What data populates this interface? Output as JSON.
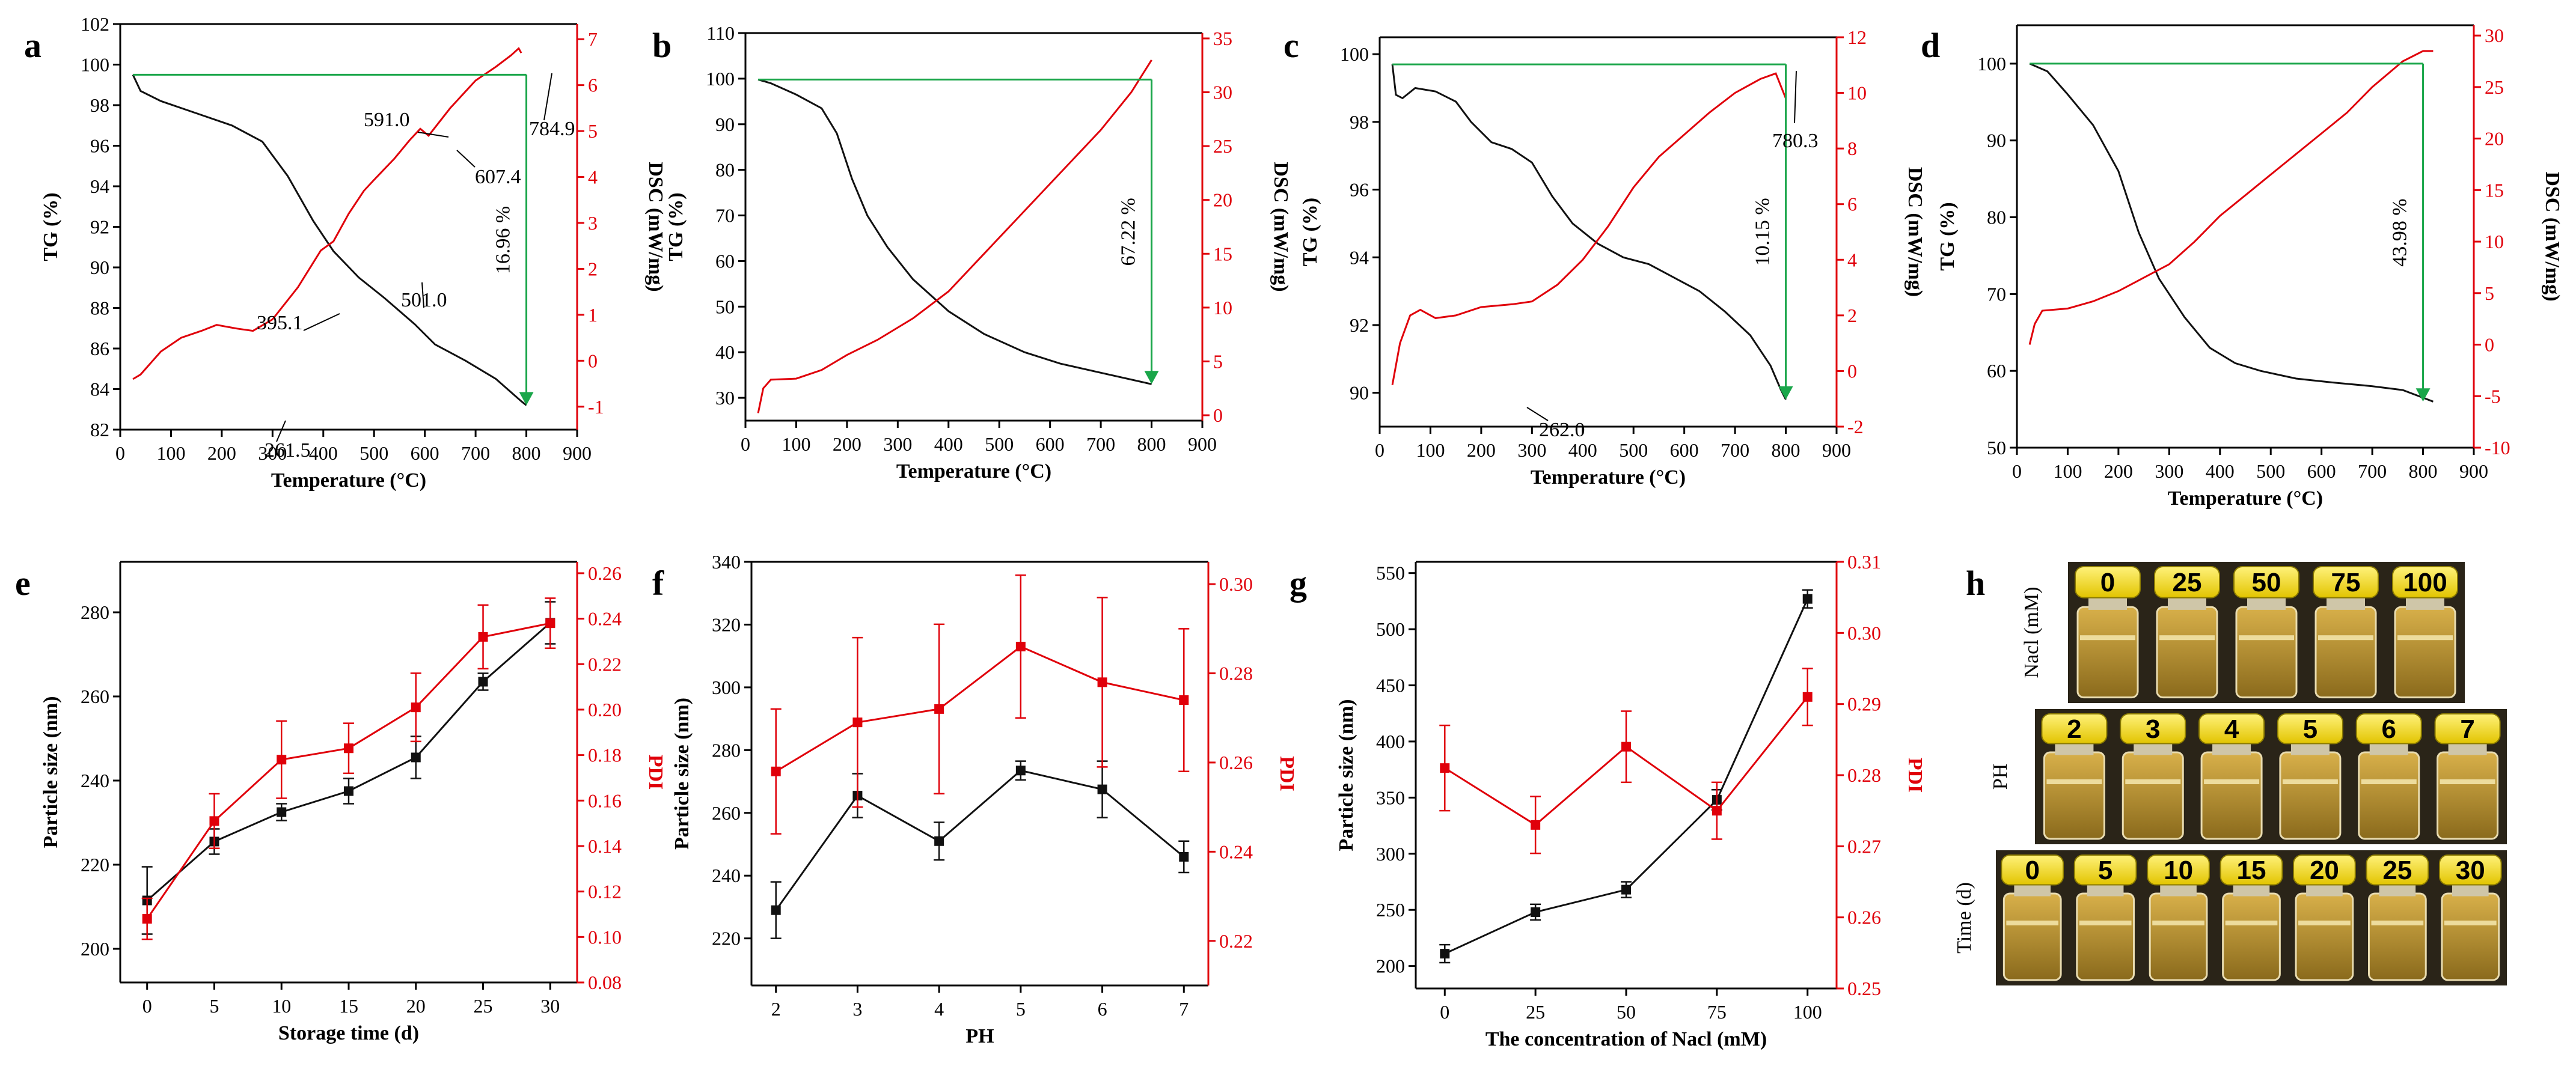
{
  "colors": {
    "black_series": "#111111",
    "red_series": "#e0000a",
    "green_arrow": "#1aa64a",
    "cap_yellow": "#f4dc00",
    "liquid": "#c9a23a"
  },
  "chart_data": [
    {
      "panel": "a",
      "type": "line",
      "xlabel": "Temperature (°C)",
      "ylabel": "TG (%)",
      "y2label": "DSC (mW/mg)",
      "xlim": [
        0,
        900
      ],
      "ylim": [
        82,
        102
      ],
      "y2lim": [
        -1.5,
        7.33
      ],
      "xticks": [
        0,
        100,
        200,
        300,
        400,
        500,
        600,
        700,
        800,
        900
      ],
      "yticks": [
        82,
        84,
        86,
        88,
        90,
        92,
        94,
        96,
        98,
        100,
        102
      ],
      "y2ticks": [
        -1,
        0,
        1,
        2,
        3,
        4,
        5,
        6,
        7
      ],
      "tg": [
        [
          25,
          99.5
        ],
        [
          40,
          98.7
        ],
        [
          80,
          98.2
        ],
        [
          150,
          97.6
        ],
        [
          220,
          97.0
        ],
        [
          280,
          96.2
        ],
        [
          330,
          94.5
        ],
        [
          380,
          92.3
        ],
        [
          420,
          90.8
        ],
        [
          470,
          89.5
        ],
        [
          520,
          88.5
        ],
        [
          580,
          87.2
        ],
        [
          620,
          86.2
        ],
        [
          680,
          85.4
        ],
        [
          740,
          84.5
        ],
        [
          790,
          83.4
        ],
        [
          800,
          83.2
        ]
      ],
      "dsc": [
        [
          25,
          -0.4
        ],
        [
          40,
          -0.3
        ],
        [
          80,
          0.2
        ],
        [
          120,
          0.5
        ],
        [
          160,
          0.65
        ],
        [
          190,
          0.78
        ],
        [
          230,
          0.7
        ],
        [
          261.5,
          0.65
        ],
        [
          300,
          0.9
        ],
        [
          350,
          1.6
        ],
        [
          395.1,
          2.4
        ],
        [
          420,
          2.6
        ],
        [
          450,
          3.2
        ],
        [
          480,
          3.7
        ],
        [
          501,
          3.95
        ],
        [
          540,
          4.4
        ],
        [
          570,
          4.8
        ],
        [
          591,
          5.05
        ],
        [
          607.4,
          4.9
        ],
        [
          650,
          5.5
        ],
        [
          700,
          6.1
        ],
        [
          740,
          6.4
        ],
        [
          770,
          6.65
        ],
        [
          784.9,
          6.8
        ],
        [
          790,
          6.7
        ]
      ],
      "mass_loss": "16.96 %",
      "annotations": [
        "261.5",
        "395.1",
        "501.0",
        "591.0",
        "607.4",
        "784.9"
      ]
    },
    {
      "panel": "b",
      "type": "line",
      "xlabel": "Temperature (°C)",
      "ylabel": "TG (%)",
      "y2label": "DSC (mW/mg)",
      "xlim": [
        0,
        900
      ],
      "ylim": [
        25,
        110
      ],
      "y2lim": [
        -0.5,
        35.5
      ],
      "xticks": [
        0,
        100,
        200,
        300,
        400,
        500,
        600,
        700,
        800,
        900
      ],
      "yticks": [
        30,
        40,
        50,
        60,
        70,
        80,
        90,
        100,
        110
      ],
      "y2ticks": [
        0,
        5,
        10,
        15,
        20,
        25,
        30,
        35
      ],
      "tg": [
        [
          25,
          99.8
        ],
        [
          50,
          99.0
        ],
        [
          100,
          96.5
        ],
        [
          150,
          93.5
        ],
        [
          180,
          88
        ],
        [
          210,
          78
        ],
        [
          240,
          70
        ],
        [
          280,
          63
        ],
        [
          330,
          56
        ],
        [
          400,
          49
        ],
        [
          470,
          44
        ],
        [
          550,
          40
        ],
        [
          620,
          37.5
        ],
        [
          700,
          35.5
        ],
        [
          780,
          33.5
        ],
        [
          800,
          33
        ]
      ],
      "dsc": [
        [
          25,
          0.2
        ],
        [
          35,
          2.5
        ],
        [
          50,
          3.3
        ],
        [
          100,
          3.4
        ],
        [
          150,
          4.2
        ],
        [
          200,
          5.6
        ],
        [
          260,
          7.0
        ],
        [
          330,
          9.0
        ],
        [
          400,
          11.5
        ],
        [
          470,
          15
        ],
        [
          540,
          18.5
        ],
        [
          620,
          22.5
        ],
        [
          700,
          26.5
        ],
        [
          760,
          30
        ],
        [
          800,
          33
        ]
      ],
      "mass_loss": "67.22 %"
    },
    {
      "panel": "c",
      "type": "line",
      "xlabel": "Temperature (°C)",
      "ylabel": "TG (%)",
      "y2label": "DSC (mW/mg)",
      "xlim": [
        0,
        900
      ],
      "ylim": [
        89,
        100.5
      ],
      "y2lim": [
        -2,
        12
      ],
      "xticks": [
        0,
        100,
        200,
        300,
        400,
        500,
        600,
        700,
        800,
        900
      ],
      "yticks": [
        90,
        92,
        94,
        96,
        98,
        100
      ],
      "y2ticks": [
        -2,
        0,
        2,
        4,
        6,
        8,
        10,
        12
      ],
      "tg": [
        [
          25,
          99.7
        ],
        [
          32,
          98.8
        ],
        [
          45,
          98.7
        ],
        [
          70,
          99.0
        ],
        [
          110,
          98.9
        ],
        [
          150,
          98.6
        ],
        [
          180,
          98.0
        ],
        [
          220,
          97.4
        ],
        [
          260,
          97.2
        ],
        [
          300,
          96.8
        ],
        [
          340,
          95.8
        ],
        [
          380,
          95.0
        ],
        [
          430,
          94.4
        ],
        [
          480,
          94.0
        ],
        [
          530,
          93.8
        ],
        [
          580,
          93.4
        ],
        [
          630,
          93.0
        ],
        [
          680,
          92.4
        ],
        [
          730,
          91.7
        ],
        [
          770,
          90.8
        ],
        [
          790,
          90.1
        ],
        [
          800,
          89.8
        ]
      ],
      "dsc": [
        [
          25,
          -0.5
        ],
        [
          40,
          1.0
        ],
        [
          60,
          2.0
        ],
        [
          80,
          2.2
        ],
        [
          110,
          1.9
        ],
        [
          150,
          2.0
        ],
        [
          200,
          2.3
        ],
        [
          262,
          2.4
        ],
        [
          300,
          2.5
        ],
        [
          350,
          3.1
        ],
        [
          400,
          4.0
        ],
        [
          450,
          5.2
        ],
        [
          500,
          6.6
        ],
        [
          550,
          7.7
        ],
        [
          600,
          8.5
        ],
        [
          650,
          9.3
        ],
        [
          700,
          10.0
        ],
        [
          750,
          10.5
        ],
        [
          780.3,
          10.7
        ],
        [
          800,
          9.8
        ]
      ],
      "mass_loss": "10.15 %",
      "annotations": [
        "262.0",
        "780.3"
      ]
    },
    {
      "panel": "d",
      "type": "line",
      "xlabel": "Temperature (°C)",
      "ylabel": "TG (%)",
      "y2label": "DSC (mW/mg)",
      "xlim": [
        0,
        900
      ],
      "ylim": [
        50,
        105
      ],
      "y2lim": [
        -10,
        31
      ],
      "xticks": [
        0,
        100,
        200,
        300,
        400,
        500,
        600,
        700,
        800,
        900
      ],
      "yticks": [
        50,
        60,
        70,
        80,
        90,
        100
      ],
      "y2ticks": [
        -10,
        -5,
        0,
        5,
        10,
        15,
        20,
        25,
        30
      ],
      "tg": [
        [
          25,
          100
        ],
        [
          60,
          99
        ],
        [
          100,
          96
        ],
        [
          150,
          92
        ],
        [
          200,
          86
        ],
        [
          240,
          78
        ],
        [
          280,
          72
        ],
        [
          330,
          67
        ],
        [
          380,
          63
        ],
        [
          430,
          61
        ],
        [
          480,
          60
        ],
        [
          550,
          59
        ],
        [
          620,
          58.5
        ],
        [
          700,
          58
        ],
        [
          760,
          57.5
        ],
        [
          800,
          56.5
        ],
        [
          820,
          56
        ]
      ],
      "dsc": [
        [
          25,
          0
        ],
        [
          35,
          2
        ],
        [
          50,
          3.3
        ],
        [
          100,
          3.5
        ],
        [
          150,
          4.2
        ],
        [
          200,
          5.2
        ],
        [
          250,
          6.5
        ],
        [
          300,
          7.8
        ],
        [
          350,
          10
        ],
        [
          400,
          12.5
        ],
        [
          450,
          14.5
        ],
        [
          500,
          16.5
        ],
        [
          550,
          18.5
        ],
        [
          600,
          20.5
        ],
        [
          650,
          22.5
        ],
        [
          700,
          25
        ],
        [
          760,
          27.5
        ],
        [
          800,
          28.5
        ],
        [
          820,
          28.5
        ]
      ],
      "mass_loss": "43.98 %"
    },
    {
      "panel": "e",
      "type": "line",
      "xlabel": "Storage time (d)",
      "ylabel": "Particle size (nm)",
      "y2label": "PDI",
      "xlim": [
        -2,
        32
      ],
      "ylim": [
        192,
        292
      ],
      "y2lim": [
        0.08,
        0.265
      ],
      "xticks": [
        0,
        5,
        10,
        15,
        20,
        25,
        30
      ],
      "yticks": [
        200,
        220,
        240,
        260,
        280
      ],
      "y2ticks": [
        0.08,
        0.1,
        0.12,
        0.14,
        0.16,
        0.18,
        0.2,
        0.22,
        0.24,
        0.26
      ],
      "x": [
        0,
        5,
        10,
        15,
        20,
        25,
        30
      ],
      "size": [
        211.5,
        225.5,
        232.5,
        237.5,
        245.5,
        263.5,
        277.5
      ],
      "size_err": [
        8,
        3,
        2,
        3,
        5,
        2,
        5
      ],
      "pdi": [
        0.108,
        0.151,
        0.178,
        0.183,
        0.201,
        0.232,
        0.238
      ],
      "pdi_err": [
        0.009,
        0.012,
        0.017,
        0.011,
        0.015,
        0.014,
        0.011
      ]
    },
    {
      "panel": "f",
      "type": "line",
      "xlabel": "PH",
      "ylabel": "Particle size (nm)",
      "y2label": "PDI",
      "xlim": [
        1.7,
        7.3
      ],
      "ylim": [
        205,
        340
      ],
      "y2lim": [
        0.21,
        0.305
      ],
      "xticks": [
        2,
        3,
        4,
        5,
        6,
        7
      ],
      "yticks": [
        220,
        240,
        260,
        280,
        300,
        320,
        340
      ],
      "y2ticks": [
        0.22,
        0.24,
        0.26,
        0.28,
        0.3
      ],
      "x": [
        2,
        3,
        4,
        5,
        6,
        7
      ],
      "size": [
        229,
        265.5,
        251,
        273.5,
        267.5,
        246
      ],
      "size_err": [
        9,
        7,
        6,
        3,
        9,
        5
      ],
      "pdi": [
        0.258,
        0.269,
        0.272,
        0.286,
        0.278,
        0.274
      ],
      "pdi_err": [
        0.014,
        0.019,
        0.019,
        0.016,
        0.019,
        0.016
      ]
    },
    {
      "panel": "g",
      "type": "line",
      "xlabel": "The concentration of Nacl (mM)",
      "ylabel": "Particle size (nm)",
      "y2label": "PDI",
      "xlim": [
        -8,
        108
      ],
      "ylim": [
        180,
        560
      ],
      "y2lim": [
        0.25,
        0.31
      ],
      "xticks": [
        0,
        25,
        50,
        75,
        100
      ],
      "yticks": [
        200,
        250,
        300,
        350,
        400,
        450,
        500,
        550
      ],
      "y2ticks": [
        0.25,
        0.26,
        0.27,
        0.28,
        0.29,
        0.3,
        0.31
      ],
      "x": [
        0,
        25,
        50,
        75,
        100
      ],
      "size": [
        211,
        248,
        268,
        348,
        527
      ],
      "size_err": [
        8,
        7,
        7,
        9,
        8
      ],
      "pdi": [
        0.281,
        0.273,
        0.284,
        0.275,
        0.291
      ],
      "pdi_err": [
        0.006,
        0.004,
        0.005,
        0.004,
        0.004
      ]
    }
  ],
  "panels": {
    "a": {
      "letter": "a",
      "labels": {
        "p261": "261.5",
        "p395": "395.1",
        "p501": "501.0",
        "p591": "591.0",
        "p607": "607.4",
        "p784": "784.9"
      }
    },
    "b": {
      "letter": "b"
    },
    "c": {
      "letter": "c",
      "labels": {
        "p262": "262.0",
        "p780": "780.3"
      }
    },
    "d": {
      "letter": "d"
    },
    "e": {
      "letter": "e"
    },
    "f": {
      "letter": "f"
    },
    "g": {
      "letter": "g"
    },
    "h": {
      "letter": "h",
      "rows": [
        {
          "label": "Nacl (mM)",
          "badges": [
            "0",
            "25",
            "50",
            "75",
            "100"
          ]
        },
        {
          "label": "PH",
          "badges": [
            "2",
            "3",
            "4",
            "5",
            "6",
            "7"
          ]
        },
        {
          "label": "Time (d)",
          "badges": [
            "0",
            "5",
            "10",
            "15",
            "20",
            "25",
            "30"
          ]
        }
      ]
    }
  }
}
